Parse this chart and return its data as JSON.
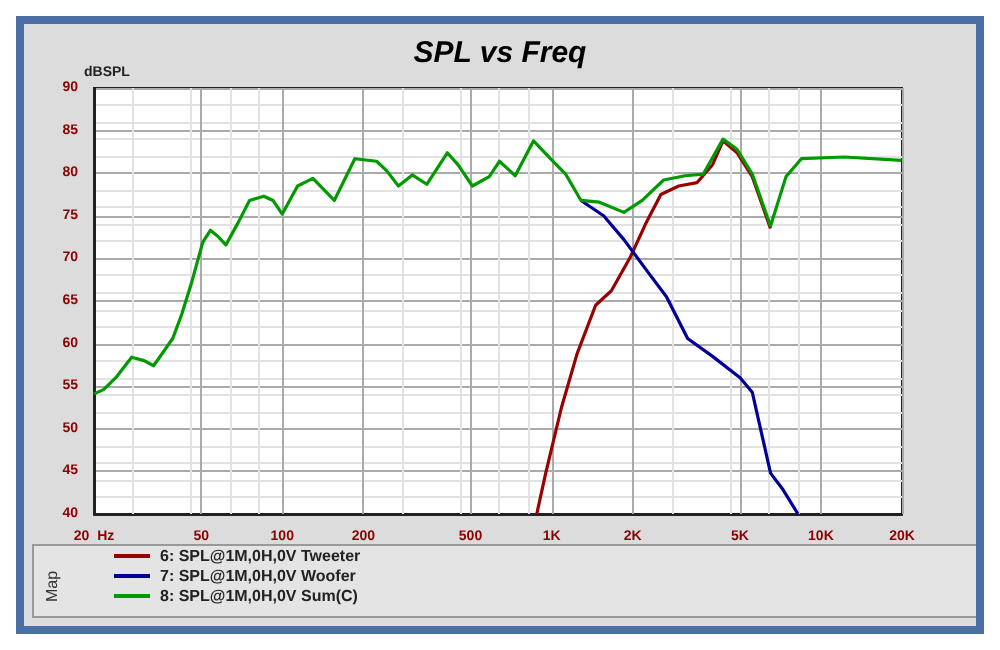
{
  "chart_data": {
    "type": "line",
    "title": "SPL vs Freq",
    "ylabel": "dBSPL",
    "log": "x",
    "xlim": [
      20,
      20000
    ],
    "xticks": [
      {
        "value": 20,
        "label": "20  Hz"
      },
      50,
      100,
      200,
      500,
      {
        "value": 1000,
        "label": "1K"
      },
      {
        "value": 2000,
        "label": "2K"
      },
      {
        "value": 5000,
        "label": "5K"
      },
      {
        "value": 10000,
        "label": "10K"
      },
      {
        "value": 20000,
        "label": "20K"
      }
    ],
    "ylim": [
      40,
      90
    ],
    "yticks": [
      40,
      45,
      50,
      55,
      60,
      65,
      70,
      75,
      80,
      85,
      90
    ],
    "grid": true,
    "legend": "bottom left",
    "marker": "none",
    "annotations": [
      "Map"
    ],
    "series": [
      {
        "name": "6: SPL@1M,0H,0V Tweeter",
        "color": "#990000",
        "x": [
          881,
          951,
          1088,
          1243,
          1457,
          1667,
          1957,
          2230,
          2545,
          2965,
          3470,
          3960,
          4330,
          4880,
          5560,
          6500
        ],
        "values": [
          40,
          44.8,
          52.5,
          58.8,
          64.5,
          66.2,
          70.1,
          74.0,
          77.5,
          78.5,
          78.9,
          81.0,
          83.8,
          82.4,
          79.6,
          73.5
        ]
      },
      {
        "name": "7: SPL@1M,0H,0V Woofer",
        "color": "#000099",
        "x": [
          1286,
          1560,
          1856,
          2290,
          2670,
          3200,
          3960,
          5010,
          5560,
          6500,
          7180,
          8220
        ],
        "values": [
          76.8,
          75.0,
          72.2,
          68.3,
          65.5,
          60.6,
          58.5,
          56.0,
          54.3,
          44.8,
          43.0,
          40
        ]
      },
      {
        "name": "8: SPL@1M,0H,0V Sum(C)",
        "color": "#009900",
        "x": [
          20,
          21.7,
          24.1,
          27.6,
          30.7,
          33.3,
          39.2,
          42.3,
          46.2,
          50.7,
          54.1,
          57.6,
          61.8,
          68.6,
          75.6,
          85.4,
          92.4,
          100,
          114,
          130,
          156,
          186,
          224,
          244,
          270,
          304,
          344,
          410,
          449,
          508,
          587,
          640,
          733,
          857,
          990,
          1127,
          1286,
          1505,
          1856,
          2170,
          2606,
          3130,
          3660,
          4330,
          4880,
          5560,
          6500,
          7420,
          8460,
          12200,
          19900
        ],
        "values": [
          54.1,
          54.6,
          56.0,
          58.4,
          58.0,
          57.4,
          60.6,
          63.4,
          67.3,
          71.9,
          73.3,
          72.6,
          71.6,
          74.2,
          76.8,
          77.3,
          76.8,
          75.2,
          78.5,
          79.4,
          76.8,
          81.7,
          81.4,
          80.3,
          78.5,
          79.8,
          78.7,
          82.4,
          81.0,
          78.5,
          79.6,
          81.4,
          79.7,
          83.8,
          81.7,
          79.9,
          76.8,
          76.6,
          75.4,
          76.8,
          79.2,
          79.7,
          79.9,
          84.0,
          82.8,
          79.9,
          73.8,
          79.6,
          81.7,
          81.9,
          81.5
        ]
      }
    ]
  }
}
